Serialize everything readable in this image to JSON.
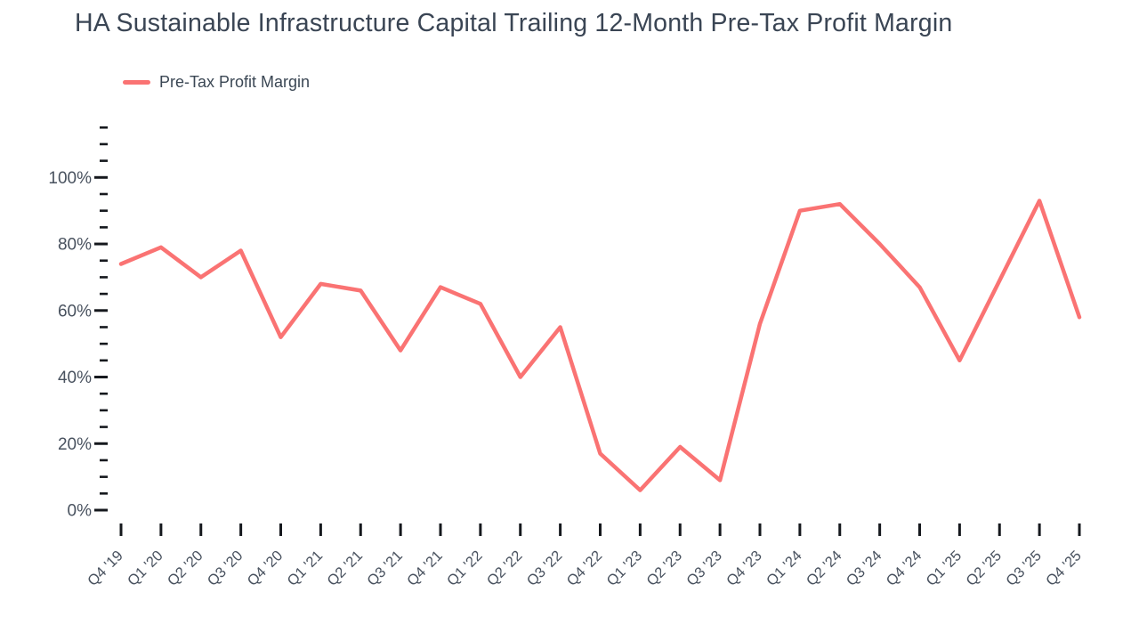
{
  "title": "HA Sustainable Infrastructure Capital Trailing 12-Month Pre-Tax Profit Margin",
  "legend": {
    "label": "Pre-Tax Profit Margin"
  },
  "colors": {
    "line": "#fa7373",
    "title_text": "#3a4554",
    "axis_label_text": "#49525f",
    "tick": "#15181d",
    "background": "#ffffff"
  },
  "chart_data": {
    "type": "line",
    "title": "HA Sustainable Infrastructure Capital Trailing 12-Month Pre-Tax Profit Margin",
    "xlabel": "",
    "ylabel": "",
    "categories": [
      "Q4 '19",
      "Q1 '20",
      "Q2 '20",
      "Q3 '20",
      "Q4 '20",
      "Q1 '21",
      "Q2 '21",
      "Q3 '21",
      "Q4 '21",
      "Q1 '22",
      "Q2 '22",
      "Q3 '22",
      "Q4 '22",
      "Q1 '23",
      "Q2 '23",
      "Q3 '23",
      "Q4 '23",
      "Q1 '24",
      "Q2 '24",
      "Q3 '24",
      "Q4 '24",
      "Q1 '25",
      "Q2 '25",
      "Q3 '25",
      "Q4 '25"
    ],
    "series": [
      {
        "name": "Pre-Tax Profit Margin",
        "values": [
          74,
          79,
          70,
          78,
          52,
          68,
          66,
          48,
          67,
          62,
          40,
          55,
          17,
          6,
          19,
          9,
          56,
          90,
          92,
          80,
          67,
          45,
          69,
          93,
          58
        ]
      }
    ],
    "y_axis": {
      "unit": "%",
      "ylim": [
        0,
        115
      ],
      "minor_tick_step": 5,
      "major_tick_step": 20,
      "major_tick_labels": [
        "0%",
        "20%",
        "40%",
        "60%",
        "80%",
        "100%"
      ]
    },
    "grid": false,
    "legend_position": "top-left",
    "x_tick_label_rotation_deg": -45
  }
}
